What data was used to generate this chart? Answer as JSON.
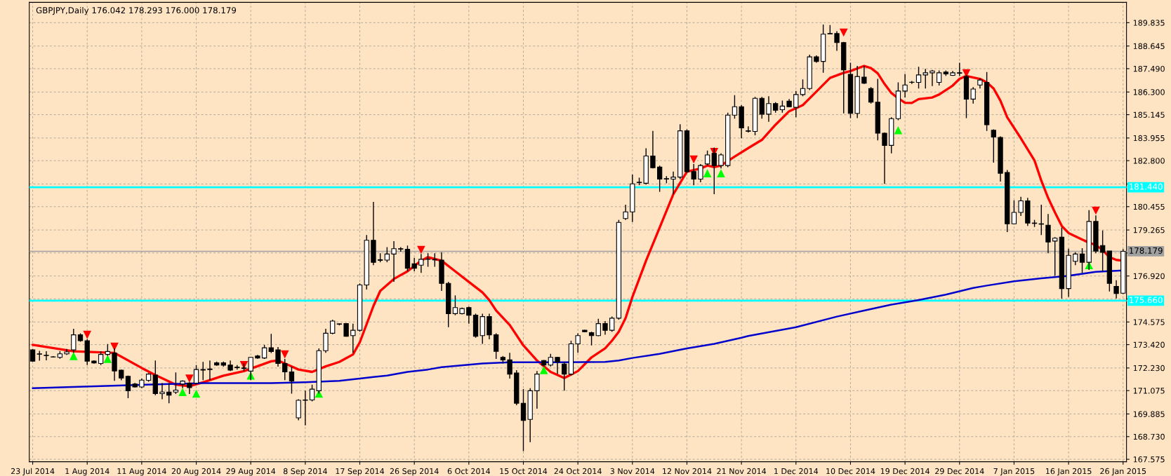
{
  "chart_data": {
    "type": "candlestick",
    "title": "GBPJPY,Daily 176.042 178.293 176.000 178.179",
    "categories": [
      "23 Jul 2014",
      null,
      null,
      null,
      null,
      null,
      null,
      null,
      "1 Aug 2014",
      null,
      null,
      null,
      null,
      null,
      null,
      null,
      "11 Aug 2014",
      null,
      null,
      null,
      null,
      null,
      null,
      null,
      "20 Aug 2014",
      null,
      null,
      null,
      null,
      null,
      null,
      null,
      "29 Aug 2014",
      null,
      null,
      null,
      null,
      null,
      null,
      null,
      "8 Sep 2014",
      null,
      null,
      null,
      null,
      null,
      null,
      null,
      "17 Sep 2014",
      null,
      null,
      null,
      null,
      null,
      null,
      null,
      "26 Sep 2014",
      null,
      null,
      null,
      null,
      null,
      null,
      null,
      "6 Oct 2014",
      null,
      null,
      null,
      null,
      null,
      null,
      null,
      "15 Oct 2014",
      null,
      null,
      null,
      null,
      null,
      null,
      null,
      "24 Oct 2014",
      null,
      null,
      null,
      null,
      null,
      null,
      null,
      "3 Nov 2014",
      null,
      null,
      null,
      null,
      null,
      null,
      null,
      "12 Nov 2014",
      null,
      null,
      null,
      null,
      null,
      null,
      null,
      "21 Nov 2014",
      null,
      null,
      null,
      null,
      null,
      null,
      null,
      "1 Dec 2014",
      null,
      null,
      null,
      null,
      null,
      null,
      null,
      "10 Dec 2014",
      null,
      null,
      null,
      null,
      null,
      null,
      null,
      "19 Dec 2014",
      null,
      null,
      null,
      null,
      null,
      null,
      null,
      "29 Dec 2014",
      null,
      null,
      null,
      null,
      null,
      null,
      null,
      "7 Jan 2015",
      null,
      null,
      null,
      null,
      null,
      null,
      null,
      "16 Jan 2015",
      null,
      null,
      null,
      null,
      null,
      null,
      null,
      "26 Jan 2015"
    ],
    "ohlc": [
      [
        173.15,
        173.2,
        172.55,
        172.58
      ],
      [
        172.95,
        173.1,
        172.6,
        172.93
      ],
      [
        172.88,
        173.08,
        172.62,
        172.86
      ],
      [
        172.8,
        172.83,
        172.77,
        172.79
      ],
      [
        172.77,
        173.08,
        172.7,
        172.95
      ],
      [
        172.95,
        173.2,
        172.9,
        173.05
      ],
      [
        173.15,
        174.23,
        173.0,
        173.92
      ],
      [
        173.92,
        174.0,
        173.57,
        173.62
      ],
      [
        173.62,
        173.7,
        172.38,
        172.58
      ],
      [
        172.58,
        172.62,
        172.45,
        172.49
      ],
      [
        172.46,
        173.08,
        172.38,
        172.92
      ],
      [
        172.92,
        173.45,
        172.85,
        173.07
      ],
      [
        172.99,
        173.23,
        171.57,
        172.08
      ],
      [
        172.12,
        172.15,
        171.6,
        171.72
      ],
      [
        171.8,
        171.84,
        170.69,
        171.07
      ],
      [
        171.41,
        171.47,
        171.23,
        171.26
      ],
      [
        171.26,
        171.69,
        171.2,
        171.61
      ],
      [
        171.6,
        171.97,
        171.53,
        171.92
      ],
      [
        171.87,
        172.61,
        170.84,
        170.92
      ],
      [
        170.92,
        171.46,
        170.64,
        171.0
      ],
      [
        171.0,
        171.46,
        170.43,
        170.84
      ],
      [
        171.0,
        172.0,
        170.9,
        171.1
      ],
      [
        171.41,
        171.6,
        171.2,
        171.56
      ],
      [
        171.46,
        171.5,
        170.9,
        171.23
      ],
      [
        171.46,
        172.38,
        171.38,
        172.15
      ],
      [
        172.12,
        172.54,
        171.61,
        172.15
      ],
      [
        172.15,
        172.61,
        171.61,
        172.18
      ],
      [
        172.49,
        172.56,
        172.34,
        172.38
      ],
      [
        172.49,
        172.56,
        172.3,
        172.37
      ],
      [
        172.38,
        172.61,
        172.07,
        172.12
      ],
      [
        172.27,
        172.38,
        172.15,
        172.25
      ],
      [
        172.23,
        172.46,
        172.07,
        172.2
      ],
      [
        172.07,
        172.8,
        171.61,
        172.77
      ],
      [
        172.84,
        172.9,
        172.7,
        172.74
      ],
      [
        172.74,
        173.41,
        172.69,
        173.26
      ],
      [
        173.26,
        173.97,
        172.99,
        173.07
      ],
      [
        173.15,
        173.3,
        172.3,
        172.46
      ],
      [
        172.46,
        172.69,
        171.61,
        172.03
      ],
      [
        172.03,
        172.31,
        170.92,
        171.57
      ],
      [
        169.69,
        170.64,
        169.56,
        170.58
      ],
      [
        170.58,
        171.07,
        169.3,
        170.6
      ],
      [
        170.6,
        171.38,
        170.53,
        171.15
      ],
      [
        171.07,
        173.23,
        170.92,
        173.11
      ],
      [
        173.11,
        174.23,
        173.0,
        174.0
      ],
      [
        174.0,
        174.69,
        173.95,
        174.62
      ],
      [
        174.46,
        174.5,
        174.4,
        174.48
      ],
      [
        174.49,
        174.52,
        173.83,
        173.85
      ],
      [
        173.88,
        174.49,
        173.0,
        174.15
      ],
      [
        174.15,
        176.54,
        174.08,
        176.46
      ],
      [
        176.46,
        179.01,
        176.23,
        178.74
      ],
      [
        178.74,
        180.7,
        177.47,
        177.62
      ],
      [
        177.75,
        178.08,
        177.62,
        177.72
      ],
      [
        177.73,
        178.39,
        177.62,
        178.04
      ],
      [
        178.04,
        178.7,
        176.62,
        178.31
      ],
      [
        178.31,
        178.39,
        178.16,
        178.29
      ],
      [
        178.28,
        178.47,
        177.16,
        177.31
      ],
      [
        177.54,
        177.85,
        177.16,
        177.31
      ],
      [
        177.47,
        178.04,
        177.08,
        177.77
      ],
      [
        177.77,
        178.08,
        177.39,
        177.78
      ],
      [
        177.76,
        178.08,
        177.39,
        177.74
      ],
      [
        177.73,
        178.13,
        176.16,
        176.54
      ],
      [
        176.54,
        176.62,
        174.31,
        175.0
      ],
      [
        175.0,
        175.93,
        174.92,
        175.31
      ],
      [
        175.0,
        175.31,
        174.96,
        175.26
      ],
      [
        175.31,
        175.36,
        174.49,
        174.92
      ],
      [
        174.92,
        175.0,
        173.77,
        173.85
      ],
      [
        173.88,
        175.0,
        173.46,
        174.85
      ],
      [
        174.85,
        175.0,
        173.69,
        173.92
      ],
      [
        173.92,
        174.0,
        172.69,
        173.08
      ],
      [
        172.77,
        172.84,
        172.46,
        172.64
      ],
      [
        172.64,
        173.0,
        171.69,
        171.92
      ],
      [
        171.97,
        172.12,
        170.33,
        170.43
      ],
      [
        170.43,
        171.15,
        167.99,
        169.56
      ],
      [
        169.61,
        171.2,
        168.45,
        171.07
      ],
      [
        171.07,
        172.07,
        170.15,
        171.92
      ],
      [
        172.61,
        172.64,
        172.31,
        172.38
      ],
      [
        172.38,
        172.95,
        172.31,
        172.77
      ],
      [
        172.77,
        172.8,
        171.92,
        172.54
      ],
      [
        172.43,
        172.54,
        171.07,
        171.92
      ],
      [
        171.92,
        173.62,
        171.84,
        173.46
      ],
      [
        173.46,
        174.0,
        173.0,
        173.88
      ],
      [
        174.15,
        174.17,
        174.06,
        174.08
      ],
      [
        174.03,
        174.08,
        173.38,
        173.88
      ],
      [
        173.88,
        174.74,
        173.85,
        174.49
      ],
      [
        174.49,
        174.62,
        173.92,
        174.15
      ],
      [
        174.15,
        174.85,
        174.08,
        174.77
      ],
      [
        174.77,
        179.78,
        174.69,
        179.65
      ],
      [
        179.85,
        180.55,
        179.78,
        180.19
      ],
      [
        180.19,
        182.09,
        179.67,
        181.62
      ],
      [
        181.7,
        181.93,
        181.55,
        181.68
      ],
      [
        181.65,
        183.43,
        181.58,
        183.04
      ],
      [
        183.04,
        184.32,
        182.4,
        182.44
      ],
      [
        182.47,
        182.55,
        181.21,
        181.86
      ],
      [
        181.86,
        182.01,
        181.65,
        181.88
      ],
      [
        181.86,
        182.24,
        181.09,
        181.96
      ],
      [
        181.96,
        184.66,
        181.86,
        184.32
      ],
      [
        184.32,
        184.4,
        182.17,
        182.24
      ],
      [
        182.24,
        182.63,
        181.55,
        181.86
      ],
      [
        181.86,
        182.63,
        181.7,
        182.55
      ],
      [
        182.63,
        183.32,
        182.55,
        183.09
      ],
      [
        183.17,
        183.47,
        181.09,
        182.55
      ],
      [
        182.55,
        183.17,
        182.4,
        183.09
      ],
      [
        182.55,
        185.25,
        182.47,
        185.12
      ],
      [
        185.12,
        186.14,
        184.94,
        185.55
      ],
      [
        185.55,
        185.63,
        183.94,
        184.47
      ],
      [
        184.32,
        184.55,
        184.24,
        184.3
      ],
      [
        184.29,
        186.05,
        184.09,
        185.98
      ],
      [
        185.98,
        186.05,
        184.94,
        185.17
      ],
      [
        185.17,
        186.09,
        184.78,
        185.71
      ],
      [
        185.71,
        185.78,
        185.25,
        185.37
      ],
      [
        185.4,
        185.86,
        185.25,
        185.58
      ],
      [
        185.83,
        185.94,
        185.52,
        185.55
      ],
      [
        185.52,
        186.35,
        185.01,
        186.17
      ],
      [
        186.17,
        186.94,
        186.09,
        186.48
      ],
      [
        186.48,
        188.2,
        186.4,
        188.09
      ],
      [
        188.09,
        188.17,
        187.79,
        187.86
      ],
      [
        187.86,
        189.74,
        187.28,
        189.25
      ],
      [
        189.28,
        189.71,
        189.25,
        189.26
      ],
      [
        189.28,
        189.4,
        188.4,
        188.82
      ],
      [
        188.82,
        188.86,
        185.21,
        187.43
      ],
      [
        187.2,
        187.79,
        184.97,
        185.21
      ],
      [
        185.21,
        187.63,
        184.97,
        187.09
      ],
      [
        187.06,
        187.63,
        186.71,
        186.75
      ],
      [
        186.48,
        186.55,
        185.71,
        185.78
      ],
      [
        185.78,
        186.97,
        183.83,
        184.2
      ],
      [
        184.2,
        184.24,
        181.62,
        183.58
      ],
      [
        183.58,
        185.01,
        183.17,
        184.94
      ],
      [
        184.94,
        186.79,
        184.86,
        186.35
      ],
      [
        186.35,
        187.22,
        186.02,
        186.66
      ],
      [
        186.79,
        186.86,
        186.71,
        186.8
      ],
      [
        186.79,
        187.59,
        186.48,
        187.17
      ],
      [
        187.17,
        187.48,
        186.48,
        187.28
      ],
      [
        187.28,
        187.43,
        186.6,
        187.37
      ],
      [
        186.79,
        187.4,
        186.63,
        187.28
      ],
      [
        187.32,
        187.4,
        187.12,
        187.22
      ],
      [
        187.15,
        187.37,
        187.12,
        187.28
      ],
      [
        187.28,
        187.79,
        187.12,
        187.26
      ],
      [
        187.09,
        187.17,
        184.97,
        185.94
      ],
      [
        185.94,
        186.55,
        185.71,
        186.45
      ],
      [
        186.66,
        187.0,
        186.48,
        186.91
      ],
      [
        186.79,
        187.32,
        184.32,
        184.63
      ],
      [
        184.35,
        184.4,
        182.7,
        184.01
      ],
      [
        183.98,
        184.04,
        181.73,
        182.16
      ],
      [
        182.2,
        182.32,
        179.16,
        179.58
      ],
      [
        179.58,
        180.78,
        179.55,
        180.16
      ],
      [
        180.16,
        180.96,
        179.98,
        180.75
      ],
      [
        180.75,
        180.9,
        179.47,
        179.62
      ],
      [
        179.62,
        179.78,
        179.42,
        179.6
      ],
      [
        179.58,
        180.55,
        179.01,
        179.56
      ],
      [
        179.51,
        180.08,
        178.08,
        178.65
      ],
      [
        178.7,
        178.9,
        176.93,
        178.85
      ],
      [
        178.9,
        179.39,
        175.77,
        176.28
      ],
      [
        176.28,
        178.31,
        175.85,
        177.97
      ],
      [
        177.67,
        178.13,
        177.47,
        178.04
      ],
      [
        178.04,
        178.34,
        177.08,
        177.62
      ],
      [
        177.62,
        180.28,
        177.23,
        179.7
      ],
      [
        179.7,
        180.01,
        178.08,
        178.19
      ],
      [
        178.47,
        179.24,
        177.16,
        178.13
      ],
      [
        178.19,
        178.19,
        176.13,
        176.54
      ],
      [
        176.39,
        176.7,
        175.77,
        176.03
      ],
      [
        176.042,
        178.293,
        176.0,
        178.179
      ]
    ],
    "series": [
      {
        "type": "line",
        "color": "#ff0000",
        "values": [
          173.41,
          null,
          null,
          null,
          null,
          null,
          173.08,
          null,
          null,
          null,
          null,
          null,
          173.0,
          null,
          null,
          null,
          172.23,
          null,
          171.87,
          null,
          null,
          171.38,
          null,
          171.3,
          null,
          171.5,
          null,
          null,
          171.84,
          null,
          null,
          172.07,
          null,
          null,
          null,
          172.57,
          172.61,
          null,
          172.31,
          172.15,
          null,
          172.03,
          null,
          172.31,
          null,
          172.54,
          null,
          172.92,
          173.54,
          174.46,
          175.39,
          176.16,
          null,
          176.77,
          null,
          177.16,
          null,
          177.7,
          177.88,
          null,
          177.7,
          null,
          177.16,
          null,
          176.62,
          null,
          176.08,
          175.69,
          175.16,
          null,
          174.42,
          null,
          173.38,
          null,
          172.61,
          null,
          172.03,
          null,
          171.72,
          null,
          172.07,
          null,
          172.77,
          null,
          173.23,
          173.62,
          174.08,
          174.77,
          175.85,
          null,
          177.7,
          null,
          179.39,
          null,
          181.09,
          null,
          182.24,
          null,
          182.4,
          182.55,
          182.47,
          182.55,
          null,
          183.01,
          null,
          183.44,
          null,
          183.86,
          null,
          184.63,
          null,
          185.32,
          null,
          185.63,
          null,
          186.32,
          null,
          187.02,
          null,
          187.28,
          187.37,
          null,
          187.63,
          187.52,
          187.25,
          186.71,
          186.25,
          185.98,
          185.75,
          185.74,
          185.94,
          null,
          186.02,
          186.17,
          null,
          186.63,
          186.97,
          187.12,
          null,
          186.97,
          186.79,
          186.48,
          185.86,
          185.01,
          null,
          183.94,
          null,
          182.81,
          181.78,
          180.9,
          180.16,
          179.47,
          179.11,
          null,
          178.78,
          178.62,
          178.5,
          178.24,
          177.88,
          177.74,
          177.7
        ]
      },
      {
        "type": "line",
        "color": "#0000cd",
        "values": [
          171.2,
          null,
          null,
          null,
          null,
          null,
          null,
          null,
          null,
          null,
          null,
          null,
          null,
          null,
          null,
          null,
          null,
          null,
          null,
          null,
          171.41,
          null,
          null,
          null,
          null,
          171.46,
          null,
          null,
          null,
          null,
          null,
          null,
          null,
          null,
          null,
          171.46,
          null,
          null,
          null,
          null,
          171.5,
          null,
          null,
          null,
          null,
          171.57,
          null,
          null,
          171.69,
          null,
          171.77,
          null,
          171.84,
          null,
          null,
          172.03,
          null,
          null,
          172.15,
          null,
          172.27,
          null,
          null,
          null,
          null,
          null,
          172.46,
          null,
          null,
          null,
          172.52,
          null,
          null,
          null,
          null,
          null,
          null,
          null,
          172.52,
          null,
          null,
          null,
          null,
          null,
          172.54,
          null,
          172.61,
          null,
          172.74,
          null,
          null,
          null,
          172.95,
          null,
          null,
          null,
          173.23,
          null,
          null,
          null,
          173.46,
          null,
          null,
          null,
          173.77,
          173.86,
          null,
          null,
          null,
          null,
          null,
          null,
          174.31,
          null,
          null,
          null,
          null,
          null,
          174.85,
          null,
          null,
          null,
          175.16,
          null,
          null,
          null,
          175.46,
          null,
          null,
          null,
          175.69,
          null,
          null,
          null,
          175.97,
          null,
          null,
          null,
          176.31,
          null,
          176.43,
          null,
          null,
          null,
          176.65,
          null,
          null,
          null,
          176.8,
          null,
          null,
          null,
          176.93,
          null,
          null,
          null,
          177.13,
          null,
          null,
          null,
          177.2
        ]
      },
      {
        "type": "scatter",
        "color": "#ff0000",
        "marker": "triangle",
        "values": [
          null,
          null,
          null,
          null,
          null,
          null,
          null,
          null,
          173.92,
          null,
          null,
          null,
          173.31,
          null,
          null,
          null,
          null,
          null,
          null,
          null,
          null,
          null,
          null,
          171.69,
          null,
          null,
          null,
          null,
          null,
          null,
          null,
          172.38,
          null,
          null,
          null,
          null,
          null,
          172.92,
          null,
          null,
          null,
          null,
          null,
          null,
          null,
          null,
          null,
          null,
          null,
          null,
          null,
          null,
          null,
          null,
          null,
          null,
          null,
          178.25,
          null,
          null,
          null,
          null,
          null,
          null,
          null,
          null,
          null,
          null,
          null,
          null,
          null,
          null,
          null,
          null,
          null,
          null,
          null,
          null,
          null,
          null,
          null,
          null,
          null,
          null,
          null,
          null,
          null,
          null,
          null,
          null,
          null,
          null,
          null,
          null,
          null,
          null,
          null,
          182.86,
          null,
          null,
          183.24,
          null,
          null,
          null,
          null,
          null,
          null,
          null,
          null,
          null,
          null,
          null,
          null,
          null,
          null,
          null,
          null,
          null,
          null,
          189.33,
          null,
          null,
          null,
          null,
          null,
          null,
          null,
          null,
          null,
          null,
          null,
          null,
          null,
          null,
          null,
          null,
          null,
          187.25,
          null,
          null,
          null,
          null,
          null,
          null,
          null,
          null,
          null,
          null,
          null,
          null,
          null,
          null,
          null,
          null,
          null,
          null,
          180.25,
          null,
          null,
          null,
          null
        ]
      },
      {
        "type": "scatter",
        "color": "#00ff00",
        "marker": "triangle",
        "values": [
          null,
          null,
          null,
          null,
          null,
          null,
          172.84,
          null,
          null,
          null,
          null,
          172.69,
          null,
          null,
          null,
          null,
          null,
          null,
          null,
          null,
          null,
          null,
          171.0,
          null,
          170.92,
          null,
          null,
          null,
          null,
          null,
          null,
          null,
          171.84,
          null,
          null,
          null,
          null,
          null,
          null,
          null,
          null,
          null,
          170.92,
          null,
          null,
          null,
          null,
          null,
          null,
          null,
          null,
          null,
          null,
          null,
          null,
          null,
          null,
          null,
          null,
          null,
          null,
          null,
          null,
          null,
          null,
          null,
          null,
          null,
          null,
          null,
          null,
          null,
          null,
          null,
          null,
          172.12,
          null,
          null,
          null,
          null,
          null,
          null,
          null,
          null,
          null,
          null,
          null,
          null,
          null,
          null,
          null,
          null,
          null,
          null,
          null,
          null,
          null,
          null,
          null,
          182.16,
          null,
          182.16,
          null,
          null,
          null,
          null,
          null,
          null,
          null,
          null,
          null,
          null,
          null,
          null,
          null,
          null,
          null,
          null,
          null,
          null,
          null,
          null,
          null,
          null,
          null,
          null,
          null,
          184.35,
          null,
          null,
          null,
          null,
          null,
          null,
          null,
          null,
          null,
          null,
          null,
          null,
          null,
          null,
          null,
          null,
          null,
          null,
          null,
          null,
          null,
          null,
          null,
          null,
          null,
          null,
          null,
          177.47,
          null,
          null,
          null,
          null,
          null
        ]
      }
    ],
    "ylim": [
      167.45,
      190.87
    ],
    "yticks": [
      {
        "value": 167.575,
        "label": "167.575"
      },
      {
        "value": 168.73,
        "label": "168.730"
      },
      {
        "value": 169.885,
        "label": "169.885"
      },
      {
        "value": 171.075,
        "label": "171.075"
      },
      {
        "value": 172.23,
        "label": "172.230"
      },
      {
        "value": 173.42,
        "label": "173.420"
      },
      {
        "value": 174.575,
        "label": "174.575"
      },
      {
        "value": 175.75,
        "label": null
      },
      {
        "value": 176.92,
        "label": "176.920"
      },
      {
        "value": 178.095,
        "label": null
      },
      {
        "value": 179.265,
        "label": "179.265"
      },
      {
        "value": 180.455,
        "label": "180.455"
      },
      {
        "value": 181.61,
        "label": null
      },
      {
        "value": 182.8,
        "label": "182.800"
      },
      {
        "value": 183.955,
        "label": "183.955"
      },
      {
        "value": 185.145,
        "label": "185.145"
      },
      {
        "value": 186.3,
        "label": "186.300"
      },
      {
        "value": 187.49,
        "label": "187.490"
      },
      {
        "value": 188.645,
        "label": "188.645"
      },
      {
        "value": 189.835,
        "label": "189.835"
      }
    ],
    "ref_lines": [
      {
        "axis": "y",
        "value": 181.44,
        "label": "181.440",
        "color": "#00ffff"
      },
      {
        "axis": "y",
        "value": 175.66,
        "label": "175.660",
        "color": "#00ffff"
      },
      {
        "axis": "y",
        "value": 178.179,
        "label": "178.179",
        "color": "#a0a0a0"
      }
    ],
    "grid": true
  }
}
